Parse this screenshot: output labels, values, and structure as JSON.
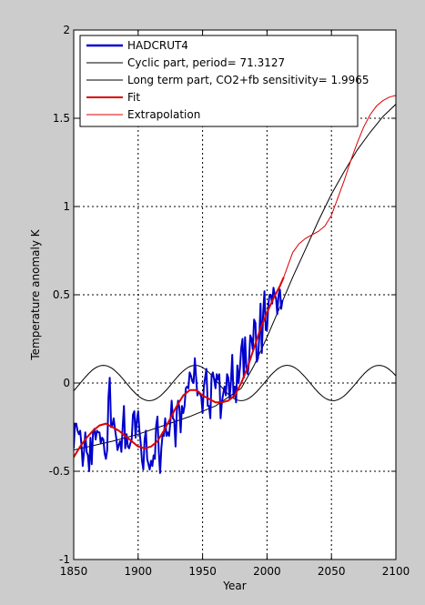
{
  "chart_data": {
    "type": "line",
    "title": "",
    "xlabel": "Year",
    "ylabel": "Temperature anomaly K",
    "xlim": [
      1850,
      2100
    ],
    "ylim": [
      -1,
      2
    ],
    "xticks": [
      "1850",
      "1900",
      "1950",
      "2000",
      "2050",
      "2100"
    ],
    "yticks": [
      "-1",
      "-0.5",
      "0",
      "0.5",
      "1",
      "1.5",
      "2"
    ],
    "grid": true,
    "legend_position": "top-left",
    "series": [
      {
        "name": "HADCRUT4",
        "color": "#0000cc",
        "x": [
          1850,
          1851,
          1852,
          1853,
          1854,
          1855,
          1856,
          1857,
          1858,
          1859,
          1860,
          1861,
          1862,
          1863,
          1864,
          1865,
          1866,
          1867,
          1868,
          1869,
          1870,
          1871,
          1872,
          1873,
          1874,
          1875,
          1876,
          1877,
          1878,
          1879,
          1880,
          1881,
          1882,
          1883,
          1884,
          1885,
          1886,
          1887,
          1888,
          1889,
          1890,
          1891,
          1892,
          1893,
          1894,
          1895,
          1896,
          1897,
          1898,
          1899,
          1900,
          1901,
          1902,
          1903,
          1904,
          1905,
          1906,
          1907,
          1908,
          1909,
          1910,
          1911,
          1912,
          1913,
          1914,
          1915,
          1916,
          1917,
          1918,
          1919,
          1920,
          1921,
          1922,
          1923,
          1924,
          1925,
          1926,
          1927,
          1928,
          1929,
          1930,
          1931,
          1932,
          1933,
          1934,
          1935,
          1936,
          1937,
          1938,
          1939,
          1940,
          1941,
          1942,
          1943,
          1944,
          1945,
          1946,
          1947,
          1948,
          1949,
          1950,
          1951,
          1952,
          1953,
          1954,
          1955,
          1956,
          1957,
          1958,
          1959,
          1960,
          1961,
          1962,
          1963,
          1964,
          1965,
          1966,
          1967,
          1968,
          1969,
          1970,
          1971,
          1972,
          1973,
          1974,
          1975,
          1976,
          1977,
          1978,
          1979,
          1980,
          1981,
          1982,
          1983,
          1984,
          1985,
          1986,
          1987,
          1988,
          1989,
          1990,
          1991,
          1992,
          1993,
          1994,
          1995,
          1996,
          1997,
          1998,
          1999,
          2000,
          2001,
          2002,
          2003,
          2004,
          2005,
          2006,
          2007,
          2008,
          2009,
          2010,
          2011,
          2012
        ],
        "y": [
          -0.37,
          -0.23,
          -0.23,
          -0.27,
          -0.29,
          -0.27,
          -0.35,
          -0.47,
          -0.39,
          -0.28,
          -0.39,
          -0.41,
          -0.5,
          -0.31,
          -0.46,
          -0.28,
          -0.26,
          -0.32,
          -0.27,
          -0.28,
          -0.28,
          -0.34,
          -0.31,
          -0.32,
          -0.4,
          -0.43,
          -0.38,
          -0.08,
          0.03,
          -0.25,
          -0.24,
          -0.2,
          -0.26,
          -0.31,
          -0.38,
          -0.35,
          -0.33,
          -0.39,
          -0.25,
          -0.13,
          -0.37,
          -0.29,
          -0.36,
          -0.37,
          -0.34,
          -0.32,
          -0.18,
          -0.16,
          -0.31,
          -0.21,
          -0.16,
          -0.27,
          -0.34,
          -0.44,
          -0.49,
          -0.32,
          -0.27,
          -0.43,
          -0.46,
          -0.49,
          -0.44,
          -0.47,
          -0.41,
          -0.43,
          -0.24,
          -0.19,
          -0.39,
          -0.51,
          -0.37,
          -0.29,
          -0.3,
          -0.2,
          -0.3,
          -0.28,
          -0.3,
          -0.22,
          -0.1,
          -0.2,
          -0.21,
          -0.36,
          -0.16,
          -0.1,
          -0.14,
          -0.28,
          -0.13,
          -0.17,
          -0.13,
          -0.03,
          -0.02,
          -0.03,
          0.06,
          0.04,
          0.01,
          0.0,
          0.14,
          0.03,
          -0.07,
          -0.05,
          -0.06,
          -0.08,
          -0.17,
          -0.02,
          0.03,
          0.08,
          -0.13,
          -0.13,
          -0.2,
          0.04,
          0.06,
          0.02,
          -0.03,
          0.05,
          0.02,
          0.05,
          -0.2,
          -0.11,
          -0.06,
          -0.02,
          -0.07,
          0.05,
          0.03,
          -0.09,
          0.01,
          0.16,
          -0.08,
          -0.02,
          -0.11,
          0.1,
          0.0,
          0.09,
          0.2,
          0.25,
          0.03,
          0.26,
          0.09,
          0.05,
          0.12,
          0.27,
          0.25,
          0.19,
          0.36,
          0.34,
          0.12,
          0.14,
          0.26,
          0.45,
          0.17,
          0.4,
          0.52,
          0.3,
          0.3,
          0.44,
          0.5,
          0.5,
          0.45,
          0.54,
          0.5,
          0.48,
          0.39,
          0.5,
          0.53,
          0.42,
          0.47
        ]
      },
      {
        "name": "Cyclic part, period= 71.3127",
        "color": "#000000",
        "period": 71.3127,
        "amplitude": 0.1,
        "x_peak": 1873
      },
      {
        "name": "Long term part, CO2+fb sensitivity= 1.9965",
        "color": "#000000",
        "x": [
          1850,
          1880,
          1900,
          1920,
          1940,
          1960,
          1980,
          1990,
          2000,
          2010,
          2020,
          2030,
          2040,
          2050,
          2060,
          2070,
          2080,
          2090,
          2100
        ],
        "y": [
          -0.38,
          -0.33,
          -0.29,
          -0.24,
          -0.19,
          -0.13,
          -0.03,
          0.1,
          0.26,
          0.43,
          0.6,
          0.76,
          0.92,
          1.07,
          1.2,
          1.32,
          1.42,
          1.51,
          1.58
        ]
      },
      {
        "name": "Fit",
        "color": "#dd0000",
        "x": [
          1850,
          1855,
          1860,
          1865,
          1870,
          1875,
          1880,
          1885,
          1890,
          1895,
          1900,
          1905,
          1910,
          1915,
          1920,
          1925,
          1930,
          1935,
          1940,
          1945,
          1950,
          1955,
          1960,
          1965,
          1970,
          1975,
          1980,
          1985,
          1990,
          1995,
          2000,
          2005,
          2010,
          2013
        ],
        "y": [
          -0.42,
          -0.36,
          -0.31,
          -0.27,
          -0.24,
          -0.23,
          -0.25,
          -0.27,
          -0.3,
          -0.33,
          -0.36,
          -0.37,
          -0.36,
          -0.33,
          -0.27,
          -0.2,
          -0.13,
          -0.07,
          -0.04,
          -0.04,
          -0.07,
          -0.09,
          -0.11,
          -0.11,
          -0.1,
          -0.07,
          0.0,
          0.09,
          0.2,
          0.31,
          0.4,
          0.48,
          0.55,
          0.6
        ]
      },
      {
        "name": "Extrapolation",
        "color": "#dd0000",
        "x": [
          2013,
          2020,
          2025,
          2030,
          2035,
          2040,
          2045,
          2050,
          2055,
          2060,
          2065,
          2070,
          2075,
          2080,
          2085,
          2090,
          2095,
          2100
        ],
        "y": [
          0.6,
          0.74,
          0.79,
          0.82,
          0.84,
          0.86,
          0.89,
          0.95,
          1.05,
          1.15,
          1.26,
          1.36,
          1.45,
          1.52,
          1.57,
          1.6,
          1.62,
          1.63
        ]
      }
    ]
  }
}
